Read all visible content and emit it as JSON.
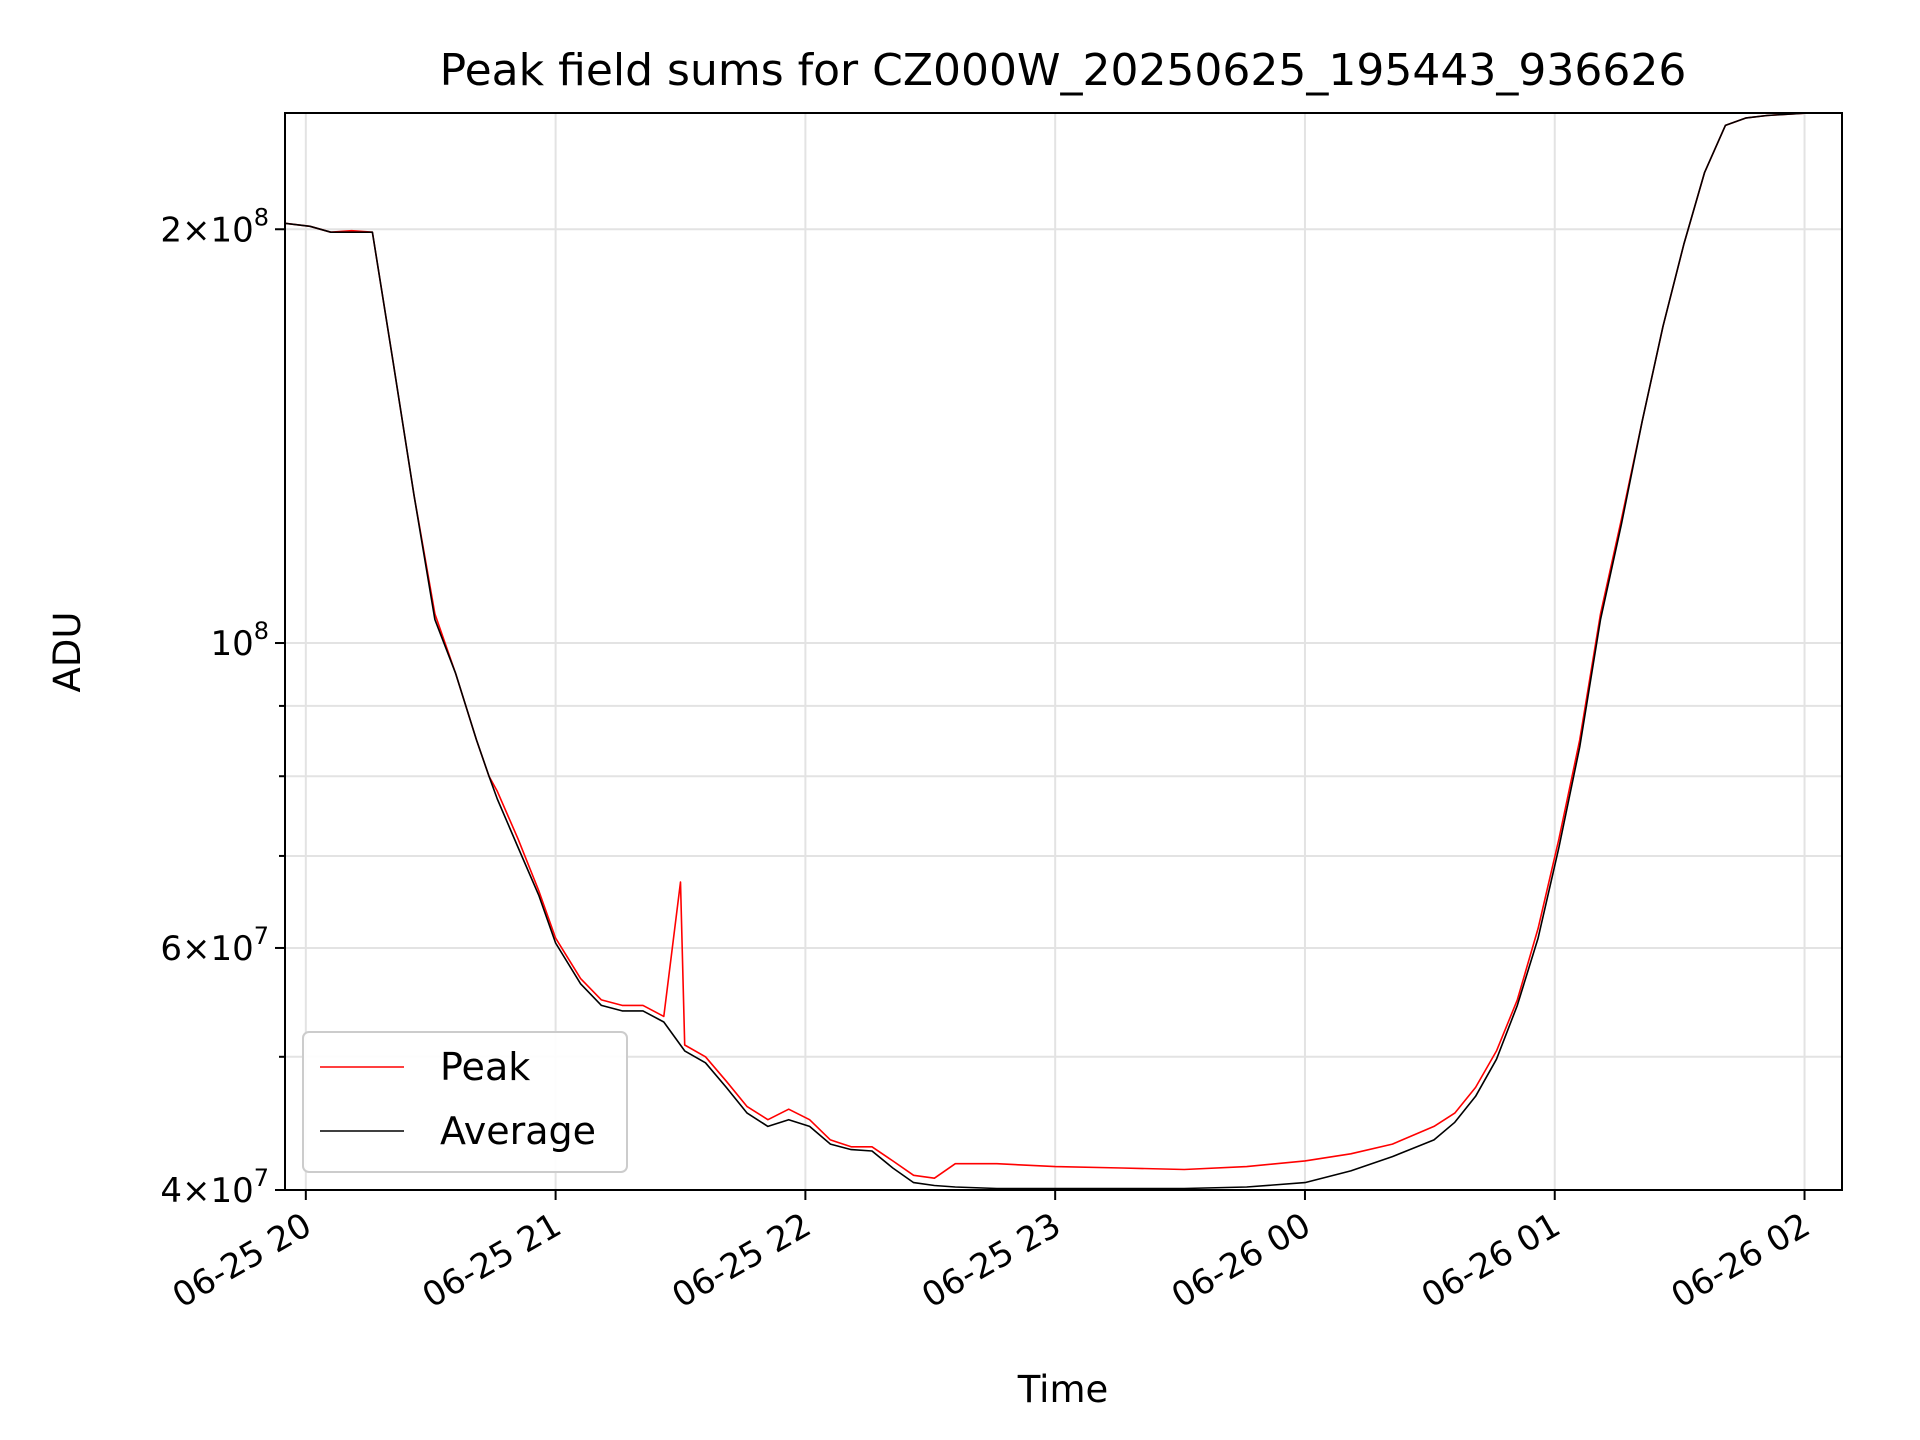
{
  "chart_data": {
    "type": "line",
    "title": "Peak field sums for CZ000W_20250625_195443_936626",
    "xlabel": "Time",
    "ylabel": "ADU",
    "yscale": "log",
    "ylim": [
      40000000,
      243000000
    ],
    "xlim": [
      "2025-06-25T19:55",
      "2025-06-26T02:09"
    ],
    "grid": true,
    "legend_position": "lower-left",
    "x_ticks": [
      {
        "x": "2025-06-25T20:00",
        "label": "06-25 20"
      },
      {
        "x": "2025-06-25T21:00",
        "label": "06-25 21"
      },
      {
        "x": "2025-06-25T22:00",
        "label": "06-25 22"
      },
      {
        "x": "2025-06-25T23:00",
        "label": "06-25 23"
      },
      {
        "x": "2025-06-26T00:00",
        "label": "06-26 00"
      },
      {
        "x": "2025-06-26T01:00",
        "label": "06-26 01"
      },
      {
        "x": "2025-06-26T02:00",
        "label": "06-26 02"
      }
    ],
    "y_ticks_major": [
      {
        "y": 40000000,
        "base": "4",
        "exp": "7"
      },
      {
        "y": 60000000,
        "base": "6",
        "exp": "7"
      },
      {
        "y": 100000000,
        "base": "",
        "exp": "8"
      },
      {
        "y": 200000000,
        "base": "2",
        "exp": "8"
      }
    ],
    "y_ticks_minor": [
      50000000,
      70000000,
      80000000,
      90000000
    ],
    "series": [
      {
        "name": "Peak",
        "color": "#ff0000",
        "x": [
          "2025-06-25T19:55",
          "2025-06-25T20:01",
          "2025-06-25T20:06",
          "2025-06-25T20:11",
          "2025-06-25T20:16",
          "2025-06-25T20:21",
          "2025-06-25T20:26",
          "2025-06-25T20:31",
          "2025-06-25T20:36",
          "2025-06-25T20:41",
          "2025-06-25T20:44",
          "2025-06-25T20:46",
          "2025-06-25T20:51",
          "2025-06-25T20:56",
          "2025-06-25T21:00",
          "2025-06-25T21:06",
          "2025-06-25T21:11",
          "2025-06-25T21:16",
          "2025-06-25T21:21",
          "2025-06-25T21:26",
          "2025-06-25T21:30",
          "2025-06-25T21:31",
          "2025-06-25T21:36",
          "2025-06-25T21:41",
          "2025-06-25T21:46",
          "2025-06-25T21:51",
          "2025-06-25T21:56",
          "2025-06-25T22:01",
          "2025-06-25T22:06",
          "2025-06-25T22:11",
          "2025-06-25T22:16",
          "2025-06-25T22:21",
          "2025-06-25T22:26",
          "2025-06-25T22:31",
          "2025-06-25T22:36",
          "2025-06-25T22:46",
          "2025-06-25T23:00",
          "2025-06-25T23:16",
          "2025-06-25T23:31",
          "2025-06-25T23:46",
          "2025-06-26T00:00",
          "2025-06-26T00:11",
          "2025-06-26T00:21",
          "2025-06-26T00:31",
          "2025-06-26T00:36",
          "2025-06-26T00:41",
          "2025-06-26T00:46",
          "2025-06-26T00:51",
          "2025-06-26T00:56",
          "2025-06-26T01:01",
          "2025-06-26T01:06",
          "2025-06-26T01:11",
          "2025-06-26T01:16",
          "2025-06-26T01:21",
          "2025-06-26T01:26",
          "2025-06-26T01:31",
          "2025-06-26T01:36",
          "2025-06-26T01:41",
          "2025-06-26T01:46",
          "2025-06-26T01:51",
          "2025-06-26T01:56",
          "2025-06-26T02:01",
          "2025-06-26T02:09"
        ],
        "y": [
          202000000,
          201000000,
          199000000,
          199500000,
          199000000,
          160000000,
          128000000,
          105000000,
          95000000,
          85000000,
          80000000,
          78000000,
          72000000,
          66000000,
          61000000,
          57000000,
          55000000,
          54500000,
          54500000,
          53500000,
          67000000,
          51000000,
          50000000,
          48000000,
          46000000,
          45000000,
          45800000,
          45000000,
          43500000,
          43000000,
          43000000,
          42000000,
          41000000,
          40800000,
          41800000,
          41800000,
          41600000,
          41500000,
          41400000,
          41600000,
          42000000,
          42500000,
          43200000,
          44500000,
          45500000,
          47500000,
          50500000,
          55000000,
          62000000,
          72000000,
          85000000,
          105000000,
          123000000,
          145000000,
          170000000,
          195000000,
          220000000,
          238000000,
          241000000,
          242000000,
          242500000,
          243000000,
          243000000
        ]
      },
      {
        "name": "Average",
        "color": "#000000",
        "x": [
          "2025-06-25T19:55",
          "2025-06-25T20:01",
          "2025-06-25T20:06",
          "2025-06-25T20:11",
          "2025-06-25T20:16",
          "2025-06-25T20:21",
          "2025-06-25T20:26",
          "2025-06-25T20:31",
          "2025-06-25T20:36",
          "2025-06-25T20:41",
          "2025-06-25T20:44",
          "2025-06-25T20:46",
          "2025-06-25T20:51",
          "2025-06-25T20:56",
          "2025-06-25T21:00",
          "2025-06-25T21:06",
          "2025-06-25T21:11",
          "2025-06-25T21:16",
          "2025-06-25T21:21",
          "2025-06-25T21:26",
          "2025-06-25T21:31",
          "2025-06-25T21:36",
          "2025-06-25T21:41",
          "2025-06-25T21:46",
          "2025-06-25T21:51",
          "2025-06-25T21:56",
          "2025-06-25T22:01",
          "2025-06-25T22:06",
          "2025-06-25T22:11",
          "2025-06-25T22:16",
          "2025-06-25T22:21",
          "2025-06-25T22:26",
          "2025-06-25T22:31",
          "2025-06-25T22:36",
          "2025-06-25T22:46",
          "2025-06-25T23:00",
          "2025-06-25T23:16",
          "2025-06-25T23:31",
          "2025-06-25T23:46",
          "2025-06-26T00:00",
          "2025-06-26T00:11",
          "2025-06-26T00:21",
          "2025-06-26T00:31",
          "2025-06-26T00:36",
          "2025-06-26T00:41",
          "2025-06-26T00:46",
          "2025-06-26T00:51",
          "2025-06-26T00:56",
          "2025-06-26T01:01",
          "2025-06-26T01:06",
          "2025-06-26T01:11",
          "2025-06-26T01:16",
          "2025-06-26T01:21",
          "2025-06-26T01:26",
          "2025-06-26T01:31",
          "2025-06-26T01:36",
          "2025-06-26T01:41",
          "2025-06-26T01:46",
          "2025-06-26T01:51",
          "2025-06-26T01:56",
          "2025-06-26T02:01",
          "2025-06-26T02:09"
        ],
        "y": [
          202000000,
          201000000,
          199000000,
          199000000,
          199000000,
          160000000,
          128000000,
          104000000,
          95000000,
          85000000,
          80000000,
          77000000,
          71000000,
          65500000,
          60500000,
          56500000,
          54500000,
          54000000,
          54000000,
          53000000,
          50500000,
          49500000,
          47500000,
          45500000,
          44500000,
          45000000,
          44500000,
          43200000,
          42800000,
          42700000,
          41500000,
          40500000,
          40300000,
          40200000,
          40100000,
          40100000,
          40100000,
          40100000,
          40200000,
          40500000,
          41300000,
          42300000,
          43500000,
          44800000,
          46800000,
          49800000,
          54500000,
          61000000,
          71000000,
          84000000,
          104000000,
          122000000,
          145000000,
          170000000,
          195000000,
          220000000,
          238000000,
          241000000,
          242000000,
          242500000,
          243000000,
          243000000
        ]
      }
    ]
  }
}
